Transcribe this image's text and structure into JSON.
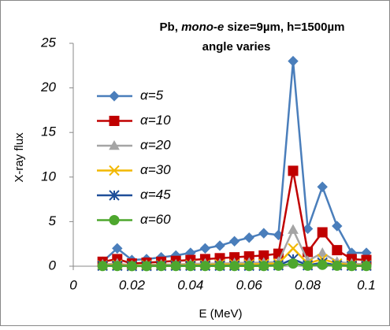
{
  "chart_data": {
    "type": "line",
    "title": [
      "Pb, ",
      "mono-e",
      " size=9µm, h=1500µm"
    ],
    "subtitle": "angle varies",
    "x_label": "E (MeV)",
    "y_label": "X-ray flux",
    "x": [
      0.01,
      0.015,
      0.02,
      0.025,
      0.03,
      0.035,
      0.04,
      0.045,
      0.05,
      0.055,
      0.06,
      0.065,
      0.07,
      0.075,
      0.08,
      0.085,
      0.09,
      0.095,
      0.1
    ],
    "series": [
      {
        "name": "α=5",
        "color": "#4a7ebb",
        "marker": "diamond",
        "values": [
          0.5,
          2.0,
          0.7,
          0.8,
          1.0,
          1.2,
          1.5,
          2.0,
          2.3,
          2.8,
          3.2,
          3.7,
          3.5,
          23,
          4.2,
          8.9,
          4.5,
          1.5,
          1.5
        ]
      },
      {
        "name": "α=10",
        "color": "#c00000",
        "marker": "square",
        "values": [
          0.5,
          0.8,
          0.3,
          0.4,
          0.5,
          0.6,
          0.7,
          0.8,
          0.9,
          1.0,
          1.1,
          1.2,
          1.4,
          10.7,
          1.6,
          3.8,
          1.8,
          0.8,
          0.7
        ]
      },
      {
        "name": "α=20",
        "color": "#a5a5a5",
        "marker": "triangle",
        "values": [
          0.2,
          0.3,
          0.1,
          0.15,
          0.2,
          0.2,
          0.25,
          0.3,
          0.3,
          0.35,
          0.4,
          0.4,
          0.5,
          4.1,
          0.6,
          1.5,
          0.5,
          0.3,
          0.2
        ]
      },
      {
        "name": "α=30",
        "color": "#f2b800",
        "marker": "x",
        "values": [
          0.1,
          0.15,
          0.05,
          0.1,
          0.1,
          0.1,
          0.15,
          0.15,
          0.2,
          0.2,
          0.2,
          0.25,
          0.3,
          2.0,
          0.3,
          0.8,
          0.3,
          0.15,
          0.1
        ]
      },
      {
        "name": "α=45",
        "color": "#1f4e99",
        "marker": "star",
        "values": [
          0.05,
          0.05,
          0.02,
          0.03,
          0.05,
          0.05,
          0.05,
          0.05,
          0.05,
          0.05,
          0.05,
          0.05,
          0.1,
          0.8,
          0.1,
          0.4,
          0.1,
          0.05,
          0.05
        ]
      },
      {
        "name": "α=60",
        "color": "#4ea72e",
        "marker": "circle",
        "values": [
          0.02,
          0.02,
          0.01,
          0.01,
          0.02,
          0.02,
          0.02,
          0.02,
          0.02,
          0.02,
          0.02,
          0.02,
          0.05,
          0.3,
          0.05,
          0.15,
          0.05,
          0.02,
          0.02
        ]
      }
    ],
    "xlim": [
      0,
      0.1
    ],
    "xticks": [
      0,
      0.02,
      0.04,
      0.06,
      0.08,
      0.1
    ],
    "ylim": [
      0,
      25
    ],
    "yticks": [
      0,
      5,
      10,
      15,
      20,
      25
    ],
    "grid": false,
    "legend": "left"
  }
}
